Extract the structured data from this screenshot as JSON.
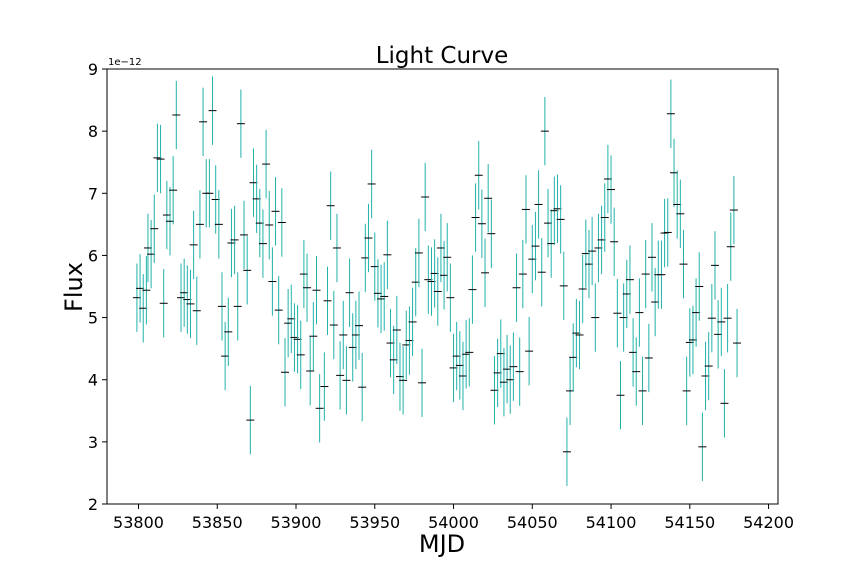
{
  "chart_data": {
    "type": "errorbar",
    "title": "Light Curve",
    "xlabel": "MJD",
    "ylabel": "Flux",
    "offset_label": "1e−12",
    "x": [
      53799,
      53801,
      53803,
      53805,
      53806,
      53808,
      53810,
      53812,
      53814,
      53816,
      53818,
      53820,
      53822,
      53824,
      53827,
      53829,
      53831,
      53833,
      53835,
      53837,
      53839,
      53841,
      53843,
      53845,
      53847,
      53849,
      53851,
      53853,
      53855,
      53857,
      53859,
      53861,
      53863,
      53865,
      53867,
      53869,
      53871,
      53873,
      53875,
      53877,
      53879,
      53881,
      53883,
      53885,
      53887,
      53889,
      53891,
      53893,
      53895,
      53897,
      53899,
      53901,
      53903,
      53905,
      53907,
      53909,
      53911,
      53913,
      53915,
      53918,
      53920,
      53922,
      53924,
      53926,
      53928,
      53930,
      53932,
      53934,
      53936,
      53938,
      53940,
      53942,
      53944,
      53946,
      53948,
      53950,
      53952,
      53954,
      53956,
      53958,
      53960,
      53962,
      53964,
      53966,
      53968,
      53970,
      53972,
      53974,
      53976,
      53978,
      53980,
      53982,
      53984,
      53986,
      53988,
      53990,
      53992,
      53994,
      53996,
      53998,
      54000,
      54002,
      54004,
      54006,
      54008,
      54010,
      54012,
      54014,
      54016,
      54018,
      54020,
      54022,
      54024,
      54026,
      54028,
      54030,
      54032,
      54034,
      54036,
      54038,
      54040,
      54042,
      54044,
      54046,
      54048,
      54050,
      54052,
      54054,
      54056,
      54058,
      54060,
      54062,
      54064,
      54066,
      54068,
      54070,
      54072,
      54074,
      54076,
      54078,
      54080,
      54082,
      54084,
      54086,
      54088,
      54090,
      54092,
      54094,
      54096,
      54098,
      54100,
      54102,
      54104,
      54106,
      54108,
      54110,
      54112,
      54114,
      54116,
      54118,
      54120,
      54122,
      54124,
      54126,
      54128,
      54130,
      54132,
      54134,
      54136,
      54138,
      54140,
      54142,
      54144,
      54146,
      54148,
      54150,
      54152,
      54154,
      54156,
      54158,
      54160,
      54162,
      54164,
      54166,
      54168,
      54170,
      54172,
      54174,
      54176,
      54178,
      54180
    ],
    "series": [
      {
        "values": [
          5.32,
          5.47,
          5.15,
          5.44,
          6.12,
          6.02,
          6.43,
          7.57,
          7.55,
          5.23,
          6.65,
          6.55,
          7.05,
          8.26,
          5.32,
          5.4,
          5.29,
          5.22,
          6.17,
          5.11,
          6.5,
          8.15,
          7.0,
          7.0,
          8.33,
          6.9,
          6.5,
          5.18,
          4.38,
          4.77,
          6.2,
          6.25,
          5.18,
          8.12,
          6.33,
          5.76,
          3.35,
          7.17,
          6.91,
          6.52,
          6.19,
          7.47,
          6.49,
          5.58,
          6.71,
          5.12,
          6.53,
          4.12,
          4.91,
          4.98,
          4.68,
          4.65,
          4.4,
          5.7,
          5.48,
          4.14,
          4.7,
          5.44,
          3.54,
          3.89,
          5.27,
          6.8,
          4.88,
          6.12,
          4.07,
          4.72,
          3.99,
          5.4,
          4.52,
          4.72,
          4.87,
          3.88,
          5.96,
          6.28,
          7.15,
          5.82,
          5.39,
          5.3,
          5.34,
          6.01,
          4.59,
          4.32,
          4.8,
          4.05,
          3.99,
          4.56,
          4.63,
          4.93,
          5.57,
          6.04,
          3.95,
          6.94,
          5.61,
          5.58,
          5.71,
          5.42,
          6.12,
          5.68,
          5.97,
          5.32,
          4.19,
          4.38,
          4.23,
          4.06,
          4.41,
          4.44,
          5.45,
          6.61,
          7.29,
          6.51,
          5.72,
          6.92,
          6.35,
          3.83,
          4.11,
          4.42,
          3.96,
          4.17,
          4.0,
          4.21,
          5.48,
          4.13,
          5.7,
          6.74,
          4.46,
          5.94,
          6.15,
          6.82,
          5.73,
          8.0,
          6.52,
          6.19,
          6.72,
          6.75,
          6.58,
          5.51,
          2.84,
          3.82,
          4.36,
          4.75,
          4.72,
          5.46,
          6.03,
          5.86,
          6.07,
          5.0,
          6.12,
          6.25,
          6.61,
          7.23,
          7.06,
          6.22,
          5.07,
          3.75,
          5.0,
          5.38,
          5.61,
          4.44,
          4.13,
          5.08,
          3.82,
          5.7,
          4.35,
          5.97,
          5.25,
          5.69,
          5.69,
          6.36,
          6.37,
          8.28,
          7.33,
          6.82,
          6.67,
          5.86,
          3.82,
          4.6,
          4.64,
          5.08,
          5.5,
          2.92,
          4.06,
          4.22,
          4.99,
          5.84,
          4.73,
          4.93,
          3.62,
          4.99,
          6.14,
          6.73,
          4.59
        ],
        "color": "#20b2aa",
        "marker_color": "#000000"
      }
    ],
    "yerr": 0.55,
    "xlim": [
      53780,
      54206
    ],
    "ylim": [
      2,
      9
    ],
    "xticks": [
      53800,
      53850,
      53900,
      53950,
      54000,
      54050,
      54100,
      54150,
      54200
    ],
    "yticks": [
      2,
      3,
      4,
      5,
      6,
      7,
      8,
      9
    ]
  }
}
